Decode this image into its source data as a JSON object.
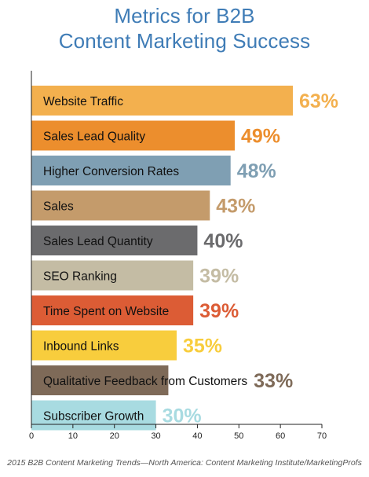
{
  "title": {
    "line1": "Metrics for B2B",
    "line2": "Content Marketing Success"
  },
  "source": "2015 B2B Content Marketing Trends—North America: Content Marketing Institute/MarketingProfs",
  "chart_data": {
    "type": "bar",
    "orientation": "horizontal",
    "title": "Metrics for B2B Content Marketing Success",
    "categories": [
      "Website Traffic",
      "Sales Lead Quality",
      "Higher Conversion Rates",
      "Sales",
      "Sales Lead Quantity",
      "SEO Ranking",
      "Time Spent on Website",
      "Inbound Links",
      "Qualitative Feedback from Customers",
      "Subscriber Growth"
    ],
    "values": [
      63,
      49,
      48,
      43,
      40,
      39,
      39,
      35,
      33,
      30
    ],
    "value_labels": [
      "63%",
      "49%",
      "48%",
      "43%",
      "40%",
      "39%",
      "39%",
      "35%",
      "33%",
      "30%"
    ],
    "colors": [
      "#f3b04e",
      "#ec8e2d",
      "#7f9fb3",
      "#c49b6b",
      "#6b6b6d",
      "#c4bca4",
      "#dc5c35",
      "#f8cd3d",
      "#7e6a58",
      "#a8dbe1"
    ],
    "label_colors": [
      "#f3b04e",
      "#ec8e2d",
      "#7f9fb3",
      "#c49b6b",
      "#6b6b6d",
      "#c4bca4",
      "#dc5c35",
      "#f8cd3d",
      "#7e6a58",
      "#a8dbe1"
    ],
    "xlim": [
      0,
      70
    ],
    "xticks": [
      "0",
      "10",
      "20",
      "30",
      "40",
      "50",
      "60",
      "70"
    ],
    "xlabel": "",
    "ylabel": "",
    "grid": false,
    "legend": "none"
  }
}
